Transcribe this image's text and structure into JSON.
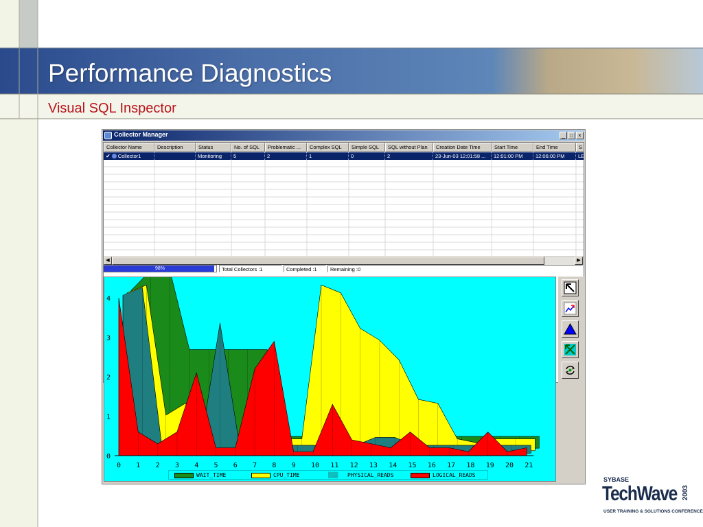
{
  "slide": {
    "title": "Performance Diagnostics",
    "subtitle": "Visual SQL Inspector"
  },
  "window": {
    "title": "Collector Manager",
    "minimize_label": "_",
    "maximize_label": "□",
    "close_label": "×"
  },
  "grid": {
    "columns": [
      "Collector Name",
      "Description",
      "Status",
      "No. of SQL",
      "Problematic ...",
      "Complex SQL",
      "Simple SQL",
      "SQL without Plan",
      "Creation Date Time",
      "Start Time",
      "End Time",
      "S"
    ],
    "rows": [
      [
        "Collector1",
        "",
        "Monitoring",
        "5",
        "2",
        "1",
        "0",
        "2",
        "23-Jun-03 12:01:58 ...",
        "12:01:00 PM",
        "12:06:00 PM",
        "LE"
      ]
    ]
  },
  "status": {
    "progress_percent": 98,
    "progress_label": "98%",
    "total": "Total Collectors :1",
    "completed": "Completed :1",
    "remaining": "Remaining :0"
  },
  "toolbar": {
    "icons": [
      "select-arrow-icon",
      "chart-refresh-icon",
      "triangle-up-icon",
      "rotate-arrows-icon",
      "refresh-cycle-icon"
    ]
  },
  "colors": {
    "wait_time": "#1a8a1a",
    "cpu_time": "#ffff00",
    "physical_reads": "#1f7f80",
    "logical_reads": "#ff0000",
    "background": "#00ffff"
  },
  "chart_data": {
    "type": "area",
    "x": [
      0,
      1,
      2,
      3,
      4,
      5,
      6,
      7,
      8,
      9,
      10,
      11,
      12,
      13,
      14,
      15,
      16,
      17,
      18,
      19,
      20,
      21
    ],
    "ylim": [
      0,
      4.5
    ],
    "yticks": [
      0,
      1,
      2,
      3,
      4
    ],
    "series": [
      {
        "name": "WAIT_TIME",
        "values": [
          4,
          4.5,
          4.5,
          2.5,
          2.5,
          2.5,
          2.5,
          2.5,
          0.3,
          0.3,
          0.3,
          0.3,
          0.3,
          0.3,
          0.3,
          0.3,
          0.3,
          0.3,
          0.3,
          0.3,
          0.3,
          0.3
        ]
      },
      {
        "name": "CPU_TIME",
        "values": [
          4,
          4.2,
          0.9,
          1.2,
          0.8,
          0.3,
          0.3,
          0.3,
          0.3,
          0.3,
          4.2,
          4.0,
          3.1,
          2.8,
          2.3,
          1.3,
          1.2,
          0.3,
          0.2,
          0.3,
          0.3,
          0.3
        ]
      },
      {
        "name": "PHYSICAL_READS",
        "values": [
          4,
          4.2,
          0.2,
          0.2,
          0.2,
          3.3,
          0.2,
          0.2,
          0.2,
          0.2,
          0.2,
          0.2,
          0.2,
          0.4,
          0.4,
          0.2,
          0.2,
          0.2,
          0.2,
          0.2,
          0.2,
          0.2
        ]
      },
      {
        "name": "LOGICAL_READS",
        "values": [
          4,
          0.6,
          0.3,
          0.6,
          2.1,
          0.2,
          0.2,
          2.2,
          2.9,
          0.1,
          0.1,
          1.3,
          0.4,
          0.3,
          0.2,
          0.6,
          0.2,
          0.2,
          0.1,
          0.6,
          0.1,
          0.2
        ]
      }
    ]
  }
}
